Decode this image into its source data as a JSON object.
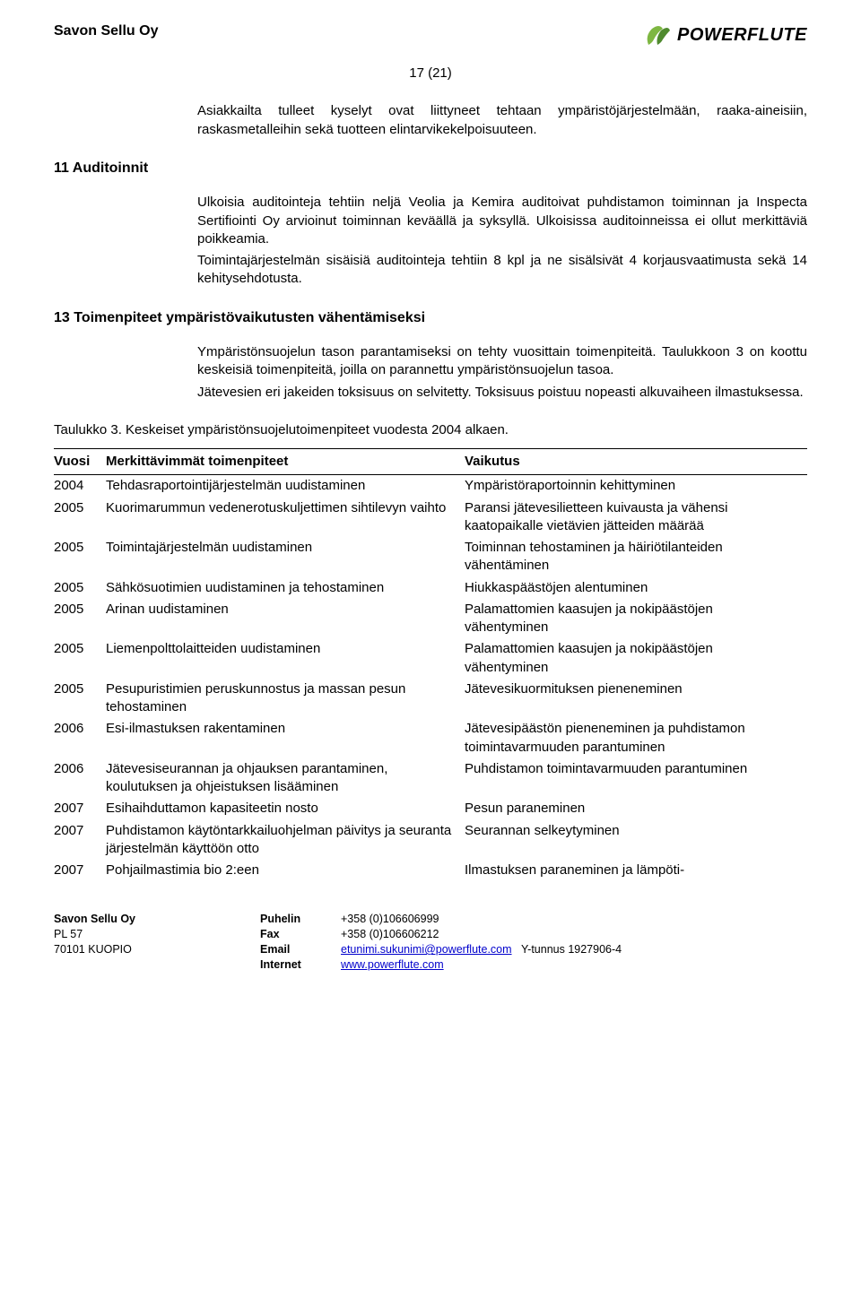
{
  "header": {
    "company": "Savon Sellu Oy",
    "logo_text": "POWERFLUTE",
    "logo_leaf_color": "#7eb742",
    "logo_leaf_dark": "#4f8a2e"
  },
  "page_number": "17 (21)",
  "para1": "Asiakkailta tulleet kyselyt ovat liittyneet tehtaan ympäristöjärjestelmään, raaka-aineisiin, raskasmetalleihin sekä tuotteen elintarvikekelpoisuuteen.",
  "section11_heading": "11 Auditoinnit",
  "para2": "Ulkoisia auditointeja tehtiin neljä Veolia ja Kemira auditoivat puhdistamon toiminnan ja Inspecta Sertifiointi Oy arvioinut toiminnan keväällä ja syksyllä. Ulkoisissa auditoinneissa ei ollut merkittäviä poikkeamia.",
  "para3": "Toimintajärjestelmän sisäisiä auditointeja tehtiin 8 kpl ja ne sisälsivät 4 korjausvaatimusta sekä 14 kehitysehdotusta.",
  "section13_heading": "13 Toimenpiteet ympäristövaikutusten vähentämiseksi",
  "para4": "Ympäristönsuojelun tason parantamiseksi on tehty vuosittain toimenpiteitä. Taulukkoon 3 on koottu keskeisiä toimenpiteitä, joilla on parannettu ympäristönsuojelun tasoa.",
  "para5": "Jätevesien eri jakeiden toksisuus on selvitetty. Toksisuus poistuu nopeasti alkuvaiheen ilmastuksessa.",
  "table_caption": "Taulukko 3. Keskeiset ympäristönsuojelutoimenpiteet vuodesta 2004 alkaen.",
  "table": {
    "columns": [
      "Vuosi",
      "Merkittävimmät toimenpiteet",
      "Vaikutus"
    ],
    "rows": [
      [
        "2004",
        "Tehdasraportointijärjestelmän uudistaminen",
        "Ympäristöraportoinnin kehittyminen"
      ],
      [
        "2005",
        "Kuorimarummun vedenerotuskuljettimen sihtilevyn vaihto",
        "Paransi jätevesilietteen kuivausta ja vähensi kaatopaikalle vietävien jätteiden määrää"
      ],
      [
        "2005",
        "Toimintajärjestelmän uudistaminen",
        "Toiminnan tehostaminen ja häiriötilanteiden vähentäminen"
      ],
      [
        "2005",
        "Sähkösuotimien uudistaminen ja tehostaminen",
        "Hiukkaspäästöjen alentuminen"
      ],
      [
        "2005",
        "Arinan uudistaminen",
        "Palamattomien kaasujen ja nokipäästöjen vähentyminen"
      ],
      [
        "2005",
        "Liemenpolttolaitteiden uudistaminen",
        "Palamattomien kaasujen ja nokipäästöjen vähentyminen"
      ],
      [
        "2005",
        "Pesupuristimien peruskunnostus ja massan pesun tehostaminen",
        "Jätevesikuormituksen pieneneminen"
      ],
      [
        "2006",
        "Esi-ilmastuksen rakentaminen",
        "Jätevesipäästön pieneneminen ja puhdistamon toimintavarmuuden parantuminen"
      ],
      [
        "2006",
        "Jätevesiseurannan ja ohjauksen parantaminen, koulutuksen ja ohjeistuksen lisääminen",
        "Puhdistamon toimintavarmuuden parantuminen"
      ],
      [
        "2007",
        "Esihaihduttamon kapasiteetin nosto",
        "Pesun paraneminen"
      ],
      [
        "2007",
        "Puhdistamon käytöntarkkailuohjelman päivitys ja seuranta järjestelmän käyttöön otto",
        "Seurannan selkeytyminen"
      ],
      [
        "2007",
        "Pohjailmastimia bio 2:een",
        "Ilmastuksen paraneminen ja lämpöti-"
      ]
    ]
  },
  "footer": {
    "company_bold": "Savon Sellu Oy",
    "addr1": "PL 57",
    "addr2": "70101 KUOPIO",
    "phone_label": "Puhelin",
    "phone_val": "+358 (0)106606999",
    "fax_label": "Fax",
    "fax_val": "+358 (0)106606212",
    "email_label": "Email",
    "email_val": "etunimi.sukunimi@powerflute.com",
    "ytunnus": "Y-tunnus 1927906-4",
    "internet_label": "Internet",
    "internet_val": "www.powerflute.com"
  }
}
